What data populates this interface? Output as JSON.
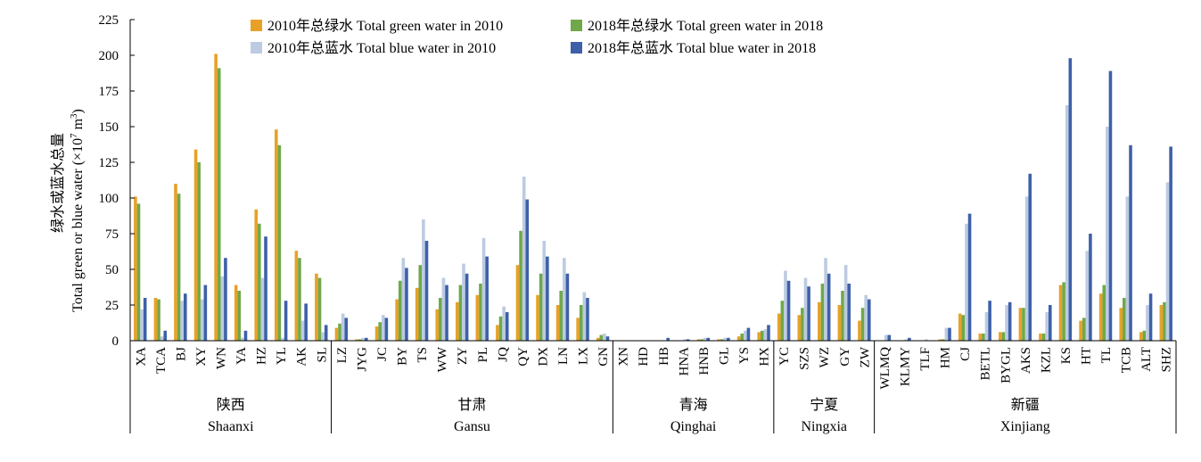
{
  "chart_data": {
    "type": "bar",
    "ylabel_cn": "绿水或蓝水总量",
    "ylabel_en": "Total green or blue water (×10",
    "ylabel_sup1": "7",
    "ylabel_unit": " m",
    "ylabel_sup2": "3",
    "ylabel_close": ")",
    "ylim": [
      0,
      225
    ],
    "yticks": [
      0,
      25,
      50,
      75,
      100,
      125,
      150,
      175,
      200,
      225
    ],
    "legend_position": "top-center",
    "colors": {
      "green2010": "#E8A128",
      "green2018": "#70A84A",
      "blue2010": "#BCCBE1",
      "blue2018": "#3D60A8"
    },
    "categories": [
      "XA",
      "TCA",
      "BJ",
      "XY",
      "WN",
      "YA",
      "HZ",
      "YL",
      "AK",
      "SL",
      "LZ",
      "JYG",
      "JC",
      "BY",
      "TS",
      "WW",
      "ZY",
      "PL",
      "JQ",
      "QY",
      "DX",
      "LN",
      "LX",
      "GN",
      "XN",
      "HD",
      "HB",
      "HNA",
      "HNB",
      "GL",
      "YS",
      "HX",
      "YC",
      "SZS",
      "WZ",
      "GY",
      "ZW",
      "WLMQ",
      "KLMY",
      "TLF",
      "HM",
      "CJ",
      "BETL",
      "BYGL",
      "AKS",
      "KZL",
      "KS",
      "HT",
      "TL",
      "TCB",
      "ALT",
      "SHZ"
    ],
    "groups": [
      {
        "cn": "陕西",
        "en": "Shaanxi",
        "count": 10
      },
      {
        "cn": "甘肃",
        "en": "Gansu",
        "count": 14
      },
      {
        "cn": "青海",
        "en": "Qinghai",
        "count": 8
      },
      {
        "cn": "宁夏",
        "en": "Ningxia",
        "count": 5
      },
      {
        "cn": "新疆",
        "en": "Xinjiang",
        "count": 15
      }
    ],
    "series": [
      {
        "name": "2010年总绿水 Total green water in 2010",
        "key": "green2010",
        "values": [
          101,
          30,
          110,
          134,
          201,
          39,
          92,
          148,
          63,
          47,
          9,
          1,
          10,
          29,
          37,
          22,
          27,
          32,
          11,
          53,
          32,
          25,
          16,
          2,
          0,
          0,
          0,
          0,
          1,
          1,
          3,
          6,
          19,
          18,
          27,
          25,
          14,
          0,
          0,
          0,
          1,
          19,
          5,
          6,
          23,
          5,
          39,
          14,
          33,
          23,
          6,
          25
        ]
      },
      {
        "name": "2018年总绿水 Total green water in 2018",
        "key": "green2018",
        "values": [
          96,
          29,
          103,
          125,
          191,
          35,
          82,
          137,
          58,
          44,
          12,
          1,
          13,
          42,
          53,
          30,
          39,
          40,
          17,
          77,
          47,
          35,
          25,
          4,
          0,
          0,
          0,
          0,
          1,
          1,
          5,
          7,
          28,
          23,
          40,
          35,
          23,
          0,
          0,
          0,
          1,
          18,
          5,
          6,
          23,
          5,
          41,
          16,
          39,
          30,
          7,
          27
        ]
      },
      {
        "name": "2010年总蓝水 Total blue water in 2010",
        "key": "blue2010",
        "values": [
          22,
          3,
          28,
          29,
          45,
          2,
          44,
          2,
          14,
          6,
          19,
          2,
          18,
          58,
          85,
          44,
          54,
          72,
          24,
          115,
          70,
          58,
          34,
          5,
          0,
          0,
          0,
          1,
          2,
          2,
          7,
          8,
          49,
          44,
          58,
          53,
          32,
          4,
          1,
          1,
          9,
          82,
          20,
          25,
          101,
          20,
          165,
          63,
          150,
          101,
          25,
          111
        ]
      },
      {
        "name": "2018年总蓝水 Total blue water in 2018",
        "key": "blue2018",
        "values": [
          30,
          7,
          33,
          39,
          58,
          7,
          73,
          28,
          26,
          11,
          16,
          2,
          16,
          51,
          70,
          39,
          47,
          59,
          20,
          99,
          59,
          47,
          30,
          3,
          0,
          0,
          2,
          1,
          2,
          2,
          9,
          11,
          42,
          38,
          47,
          40,
          29,
          4,
          2,
          0,
          9,
          89,
          28,
          27,
          117,
          25,
          198,
          75,
          189,
          137,
          33,
          136
        ]
      }
    ]
  }
}
